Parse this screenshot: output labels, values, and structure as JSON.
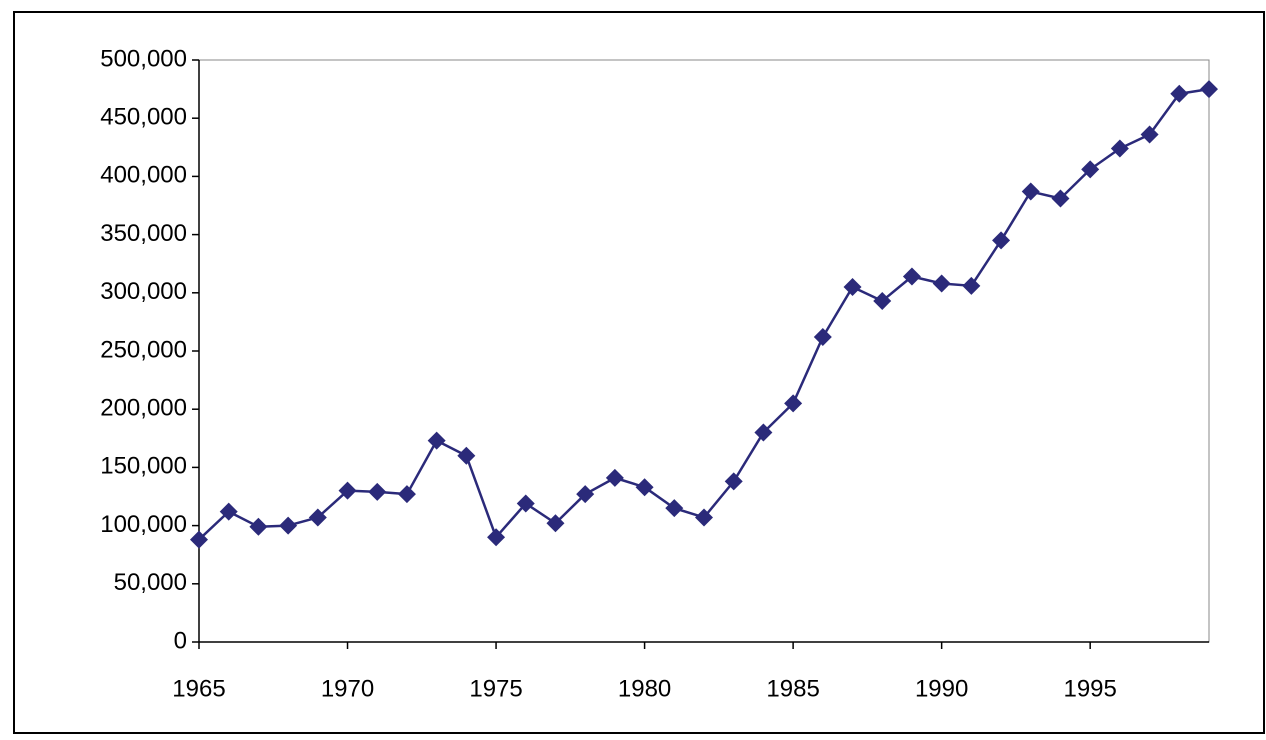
{
  "chart_data": {
    "type": "line",
    "x": [
      1965,
      1966,
      1967,
      1968,
      1969,
      1970,
      1971,
      1972,
      1973,
      1974,
      1975,
      1976,
      1977,
      1978,
      1979,
      1980,
      1981,
      1982,
      1983,
      1984,
      1985,
      1986,
      1987,
      1988,
      1989,
      1990,
      1991,
      1992,
      1993,
      1994,
      1995,
      1996,
      1997,
      1998,
      1999
    ],
    "values": [
      88000,
      112000,
      99000,
      100000,
      107000,
      130000,
      129000,
      127000,
      173000,
      160000,
      90000,
      119000,
      102000,
      127000,
      141000,
      133000,
      115000,
      107000,
      138000,
      180000,
      205000,
      262000,
      305000,
      293000,
      314000,
      308000,
      306000,
      345000,
      387000,
      381000,
      406000,
      424000,
      436000,
      471000,
      475000
    ],
    "color": "#2b2a7a",
    "xlim": [
      1965,
      1999
    ],
    "xticks": [
      1965,
      1970,
      1975,
      1980,
      1985,
      1990,
      1995
    ],
    "ylim": [
      0,
      500000
    ],
    "yticks": [
      0,
      {
        "value": 50000,
        "label": "50,000"
      },
      {
        "value": 100000,
        "label": "100,000"
      },
      {
        "value": 150000,
        "label": "150,000"
      },
      {
        "value": 200000,
        "label": "200,000"
      },
      {
        "value": 250000,
        "label": "250,000"
      },
      {
        "value": 300000,
        "label": "300,000"
      },
      {
        "value": 350000,
        "label": "350,000"
      },
      {
        "value": 400000,
        "label": "400,000"
      },
      {
        "value": 450000,
        "label": "450,000"
      },
      {
        "value": 500000,
        "label": "500,000"
      }
    ],
    "grid": false
  }
}
